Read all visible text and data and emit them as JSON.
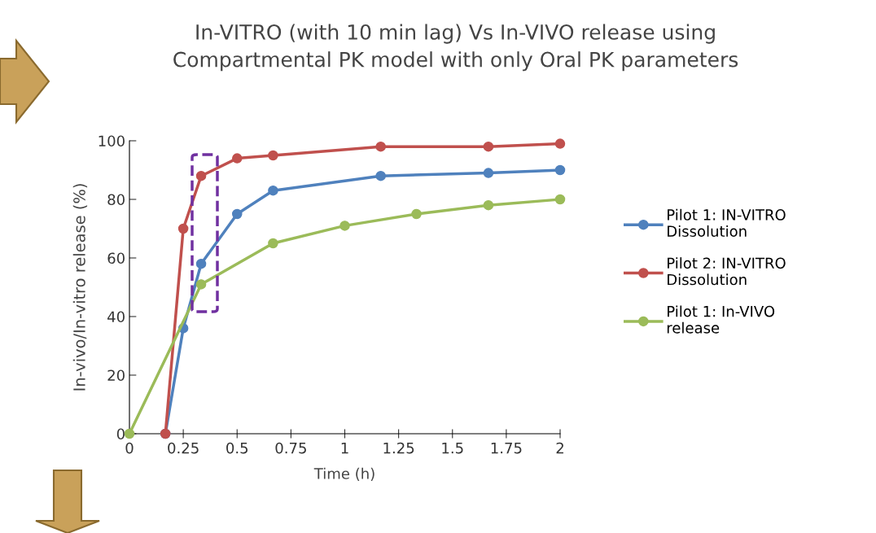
{
  "chart_data": {
    "type": "line",
    "title": "In-VITRO (with 10 min lag) Vs In-VIVO release using\nCompartmental PK model with only Oral PK parameters",
    "xlabel": "Time (h)",
    "ylabel": "In-vivo/In-vitro release (%)",
    "series": [
      {
        "name": "Pilot 1: IN-VITRO\nDissolution",
        "color": "#4f81bd",
        "x": [
          0.167,
          0.25,
          0.333,
          0.5,
          0.667,
          1.167,
          1.667,
          2
        ],
        "values": [
          0,
          36,
          58,
          75,
          83,
          88,
          89,
          90
        ]
      },
      {
        "name": "Pilot 2: IN-VITRO\nDissolution",
        "color": "#c0504d",
        "x": [
          0.167,
          0.25,
          0.333,
          0.5,
          0.667,
          1.167,
          1.667,
          2
        ],
        "values": [
          0,
          70,
          88,
          94,
          95,
          98,
          98,
          99
        ]
      },
      {
        "name": "Pilot 1: In-VIVO\nrelease",
        "color": "#9bbb59",
        "x": [
          0,
          0.333,
          0.667,
          1,
          1.333,
          1.667,
          2
        ],
        "values": [
          0,
          51,
          65,
          71,
          75,
          78,
          80
        ]
      }
    ],
    "xlim": [
      0,
      2
    ],
    "xticks": [
      0,
      0.25,
      0.5,
      0.75,
      1,
      1.25,
      1.5,
      1.75,
      2
    ],
    "ylim": [
      0,
      100
    ],
    "yticks": [
      0,
      20,
      40,
      60,
      80,
      100
    ],
    "grid": false,
    "legend": "right",
    "marker": "circle",
    "line_style": "solid"
  }
}
